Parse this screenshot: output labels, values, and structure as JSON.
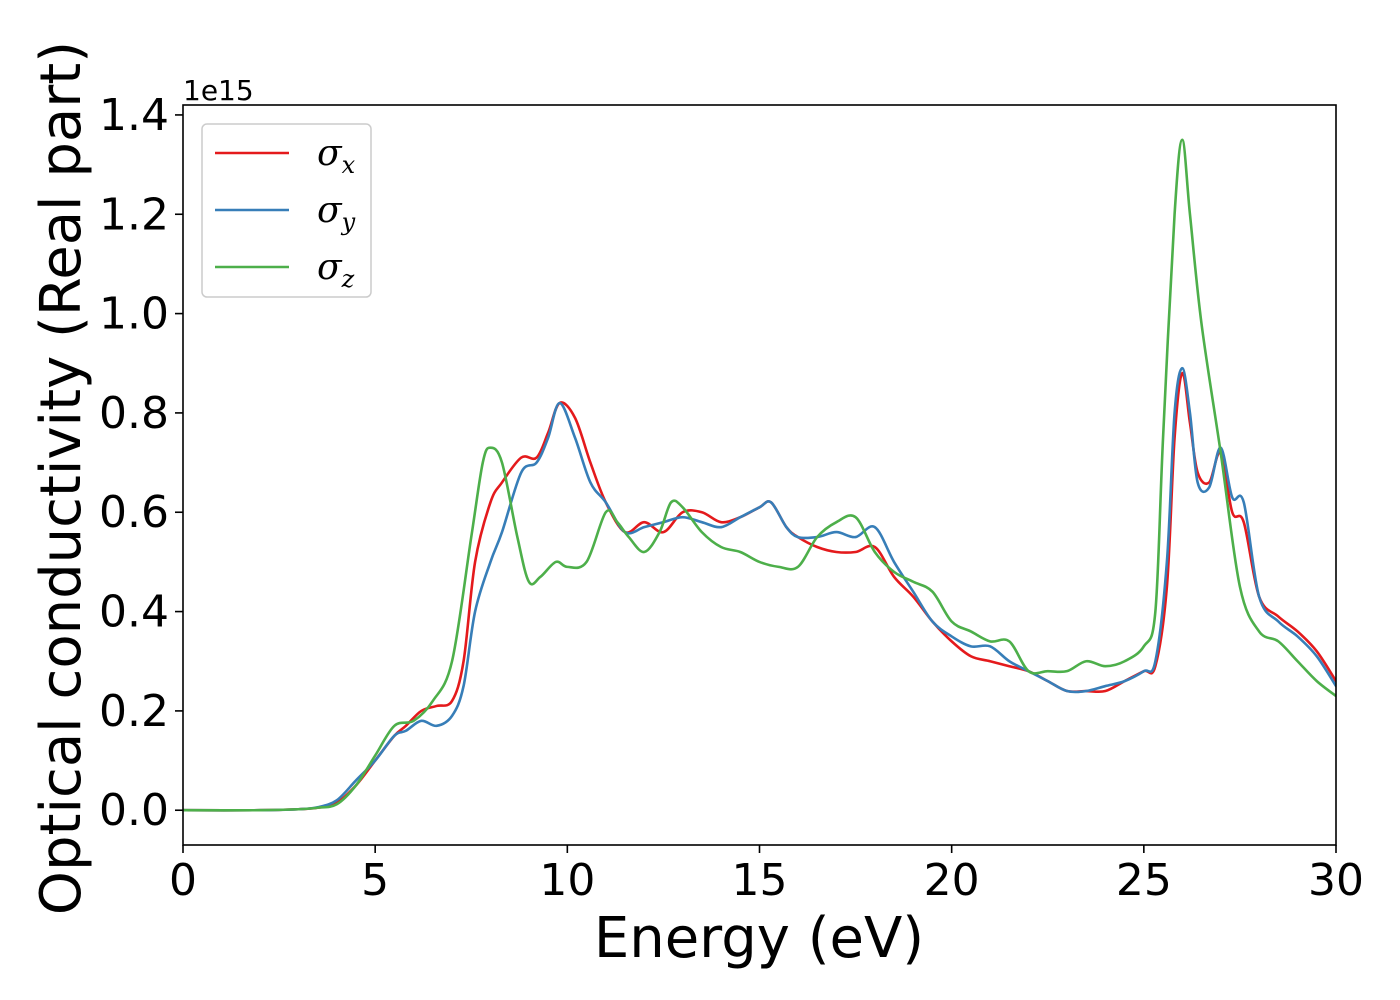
{
  "chart_data": {
    "type": "line",
    "title": "",
    "xlabel": "Energy (eV)",
    "ylabel": "Optical conductivity (Real part)",
    "y_offset_label": "1e15",
    "xlim": [
      0,
      30
    ],
    "ylim": [
      -0.07,
      1.42
    ],
    "xticks": [
      0,
      5,
      10,
      15,
      20,
      25,
      30
    ],
    "xtick_labels": [
      "0",
      "5",
      "10",
      "15",
      "20",
      "25",
      "30"
    ],
    "yticks": [
      0.0,
      0.2,
      0.4,
      0.6,
      0.8,
      1.0,
      1.2,
      1.4
    ],
    "ytick_labels": [
      "0.0",
      "0.2",
      "0.4",
      "0.6",
      "0.8",
      "1.0",
      "1.2",
      "1.4"
    ],
    "grid": false,
    "legend_position": "top-left",
    "series": [
      {
        "name": "σx",
        "legend_base": "σ",
        "legend_sub": "x",
        "color": "#e41a1c",
        "x": [
          0,
          2,
          3,
          3.5,
          4.0,
          4.5,
          5.0,
          5.5,
          5.8,
          6.2,
          6.6,
          7.0,
          7.3,
          7.6,
          8.0,
          8.3,
          8.8,
          9.2,
          9.5,
          9.8,
          10.2,
          10.6,
          11.0,
          11.5,
          12.0,
          12.5,
          13.0,
          13.5,
          14.0,
          14.5,
          15.0,
          15.3,
          15.7,
          16.0,
          16.5,
          17.0,
          17.5,
          18.0,
          18.5,
          19.0,
          19.5,
          20.0,
          20.5,
          21.0,
          21.5,
          22.0,
          22.5,
          23.0,
          23.5,
          24.0,
          24.5,
          25.0,
          25.3,
          25.6,
          25.8,
          26.0,
          26.2,
          26.4,
          26.7,
          27.0,
          27.3,
          27.6,
          28.0,
          28.5,
          29.0,
          29.5,
          30.0
        ],
        "y": [
          0.0,
          0.0,
          0.002,
          0.005,
          0.015,
          0.05,
          0.1,
          0.15,
          0.17,
          0.2,
          0.21,
          0.22,
          0.3,
          0.5,
          0.62,
          0.66,
          0.71,
          0.71,
          0.76,
          0.82,
          0.79,
          0.7,
          0.62,
          0.56,
          0.58,
          0.56,
          0.6,
          0.6,
          0.58,
          0.59,
          0.61,
          0.62,
          0.57,
          0.55,
          0.53,
          0.52,
          0.52,
          0.53,
          0.47,
          0.43,
          0.38,
          0.34,
          0.31,
          0.3,
          0.29,
          0.28,
          0.26,
          0.24,
          0.24,
          0.24,
          0.26,
          0.28,
          0.29,
          0.45,
          0.75,
          0.88,
          0.78,
          0.68,
          0.66,
          0.72,
          0.6,
          0.58,
          0.43,
          0.39,
          0.36,
          0.32,
          0.26
        ]
      },
      {
        "name": "σy",
        "legend_base": "σ",
        "legend_sub": "y",
        "color": "#377eb8",
        "x": [
          0,
          2,
          3,
          3.5,
          4.0,
          4.5,
          5.0,
          5.5,
          5.8,
          6.2,
          6.6,
          7.0,
          7.3,
          7.6,
          8.0,
          8.3,
          8.8,
          9.2,
          9.5,
          9.8,
          10.2,
          10.6,
          11.0,
          11.5,
          12.0,
          12.5,
          13.0,
          13.5,
          14.0,
          14.5,
          15.0,
          15.3,
          15.7,
          16.0,
          16.5,
          17.0,
          17.5,
          18.0,
          18.5,
          19.0,
          19.5,
          20.0,
          20.5,
          21.0,
          21.5,
          22.0,
          22.5,
          23.0,
          23.5,
          24.0,
          24.5,
          25.0,
          25.3,
          25.6,
          25.8,
          26.0,
          26.2,
          26.4,
          26.7,
          27.0,
          27.3,
          27.6,
          28.0,
          28.5,
          29.0,
          29.5,
          30.0
        ],
        "y": [
          0.0,
          0.0,
          0.002,
          0.006,
          0.02,
          0.06,
          0.1,
          0.15,
          0.16,
          0.18,
          0.17,
          0.19,
          0.25,
          0.4,
          0.5,
          0.56,
          0.68,
          0.7,
          0.75,
          0.82,
          0.75,
          0.66,
          0.62,
          0.56,
          0.57,
          0.58,
          0.59,
          0.58,
          0.57,
          0.59,
          0.61,
          0.62,
          0.57,
          0.55,
          0.55,
          0.56,
          0.55,
          0.57,
          0.5,
          0.44,
          0.38,
          0.35,
          0.33,
          0.33,
          0.3,
          0.28,
          0.26,
          0.24,
          0.24,
          0.25,
          0.26,
          0.28,
          0.3,
          0.5,
          0.8,
          0.89,
          0.8,
          0.66,
          0.65,
          0.73,
          0.63,
          0.62,
          0.43,
          0.38,
          0.35,
          0.31,
          0.25
        ]
      },
      {
        "name": "σz",
        "legend_base": "σ",
        "legend_sub": "z",
        "color": "#4daf4a",
        "x": [
          0,
          2,
          3,
          3.5,
          4.0,
          4.5,
          5.0,
          5.5,
          6.0,
          6.5,
          7.0,
          7.5,
          7.8,
          8.0,
          8.3,
          8.7,
          9.0,
          9.3,
          9.7,
          10.0,
          10.5,
          11.0,
          11.3,
          11.6,
          12.0,
          12.4,
          12.7,
          13.0,
          13.5,
          14.0,
          14.5,
          15.0,
          15.5,
          16.0,
          16.5,
          17.0,
          17.5,
          18.0,
          18.5,
          19.0,
          19.5,
          20.0,
          20.5,
          21.0,
          21.5,
          22.0,
          22.5,
          23.0,
          23.5,
          24.0,
          24.5,
          25.0,
          25.3,
          25.5,
          25.8,
          26.0,
          26.2,
          26.5,
          27.0,
          27.5,
          28.0,
          28.5,
          29.0,
          29.5,
          30.0
        ],
        "y": [
          0.0,
          0.0,
          0.002,
          0.005,
          0.012,
          0.05,
          0.11,
          0.17,
          0.18,
          0.22,
          0.3,
          0.55,
          0.7,
          0.73,
          0.7,
          0.55,
          0.46,
          0.47,
          0.5,
          0.49,
          0.5,
          0.6,
          0.58,
          0.55,
          0.52,
          0.56,
          0.62,
          0.61,
          0.56,
          0.53,
          0.52,
          0.5,
          0.49,
          0.49,
          0.55,
          0.58,
          0.59,
          0.52,
          0.48,
          0.46,
          0.44,
          0.38,
          0.36,
          0.34,
          0.34,
          0.28,
          0.28,
          0.28,
          0.3,
          0.29,
          0.3,
          0.33,
          0.4,
          0.75,
          1.2,
          1.35,
          1.2,
          0.98,
          0.72,
          0.45,
          0.36,
          0.34,
          0.3,
          0.26,
          0.23
        ]
      }
    ]
  }
}
